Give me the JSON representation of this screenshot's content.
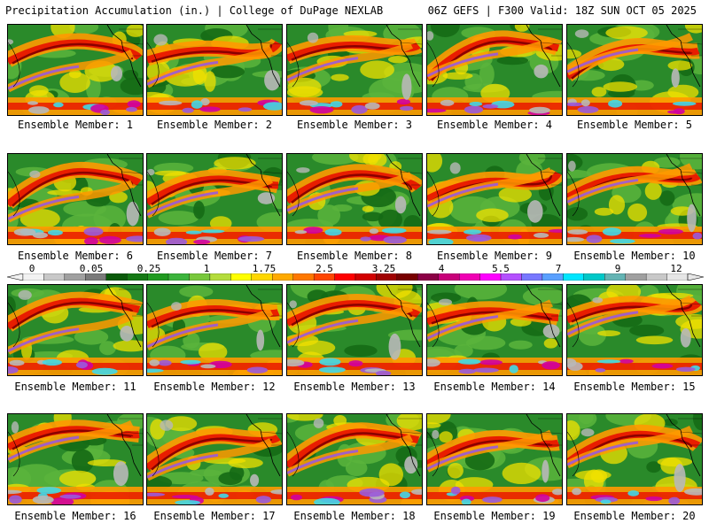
{
  "header": {
    "left": "Precipitation Accumulation (in.) | College of DuPage NEXLAB",
    "right": "06Z GEFS | F300 Valid: 18Z SUN OCT 05 2025"
  },
  "member_prefix": "Ensemble Member:",
  "members": [
    "1",
    "2",
    "3",
    "4",
    "5",
    "6",
    "7",
    "8",
    "9",
    "10",
    "11",
    "12",
    "13",
    "14",
    "15",
    "16",
    "17",
    "18",
    "19",
    "20"
  ],
  "legend": {
    "ticks": [
      "0",
      "0.05",
      "0.25",
      "1",
      "1.75",
      "2.5",
      "3.25",
      "4",
      "5.5",
      "7",
      "9",
      "12"
    ],
    "colors": [
      "#f2f2f2",
      "#c8c8c8",
      "#a0a0a0",
      "#7a7a7a",
      "#0a5a0a",
      "#147814",
      "#209a20",
      "#3cb43c",
      "#78c83c",
      "#b4dc3c",
      "#ffff00",
      "#ffd700",
      "#ffaa00",
      "#ff7800",
      "#ff4600",
      "#ff0000",
      "#d20000",
      "#a00000",
      "#780000",
      "#8c0046",
      "#c8007a",
      "#f000b4",
      "#ff00ff",
      "#b450ff",
      "#7878ff",
      "#5aa0ff",
      "#00e6ff",
      "#00c8c8",
      "#64b4b4",
      "#a0a0a0",
      "#c8c8c8",
      "#e6e6e6"
    ],
    "bands": {
      "land": "#2a8a2a",
      "dark_green": "#156a15",
      "light_green": "#5ab43c",
      "yellow": "#f0e000",
      "orange": "#ff9900",
      "red": "#e81000",
      "dark_red": "#8a0000",
      "magenta": "#d000a0",
      "purple": "#9a5adc",
      "gray": "#b8b8b8",
      "cyan": "#40d8e8"
    }
  }
}
